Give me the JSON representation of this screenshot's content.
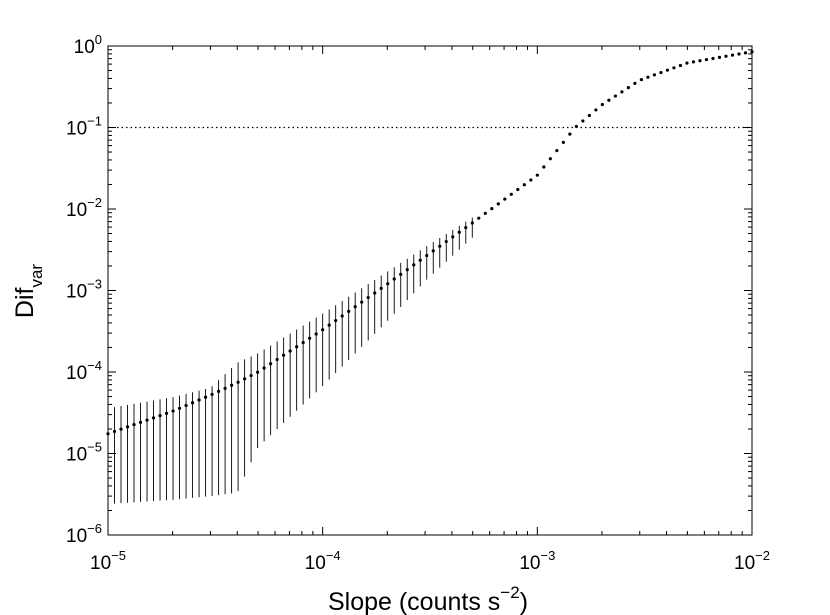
{
  "chart_data": {
    "type": "scatter",
    "x_scale": "log",
    "y_scale": "log",
    "xlim": [
      1e-05,
      0.01
    ],
    "ylim": [
      1e-06,
      1
    ],
    "grid": false,
    "xlabel": {
      "text": "Slope (counts s",
      "sup": "−2",
      "suffix": ")"
    },
    "ylabel": {
      "text": "Dif",
      "sub": "var"
    },
    "x_ticks": [
      {
        "value": 1e-05,
        "base": "10",
        "exp": "−5"
      },
      {
        "value": 0.0001,
        "base": "10",
        "exp": "−4"
      },
      {
        "value": 0.001,
        "base": "10",
        "exp": "−3"
      },
      {
        "value": 0.01,
        "base": "10",
        "exp": "−2"
      }
    ],
    "y_ticks": [
      {
        "value": 1e-06,
        "base": "10",
        "exp": "−6"
      },
      {
        "value": 1e-05,
        "base": "10",
        "exp": "−5"
      },
      {
        "value": 0.0001,
        "base": "10",
        "exp": "−4"
      },
      {
        "value": 0.001,
        "base": "10",
        "exp": "−3"
      },
      {
        "value": 0.01,
        "base": "10",
        "exp": "−2"
      },
      {
        "value": 0.1,
        "base": "10",
        "exp": "−1"
      },
      {
        "value": 1,
        "base": "10",
        "exp": "0"
      }
    ],
    "reference_lines": [
      {
        "axis": "y",
        "value": 0.1,
        "style": "dotted"
      }
    ],
    "series": [
      {
        "marker": "dot",
        "x_range": [
          1e-05,
          0.01
        ],
        "n_points": 100,
        "curve_knots_x": [
          1e-05,
          2e-05,
          3e-05,
          4e-05,
          5e-05,
          0.0001,
          0.0002,
          0.0003,
          0.0005,
          0.001,
          0.0015,
          0.002,
          0.003,
          0.005,
          0.01
        ],
        "curve_knots_y": [
          1.75e-05,
          3.3e-05,
          5.2e-05,
          7.4e-05,
          0.0001,
          0.00033,
          0.0012,
          0.0026,
          0.0068,
          0.026,
          0.1,
          0.19,
          0.38,
          0.62,
          0.85
        ],
        "error_low_knots_x": [
          1e-05,
          2e-05,
          3e-05,
          4e-05,
          5e-05,
          0.0001,
          0.0002,
          0.0003,
          0.0005
        ],
        "error_low_knots_y": [
          2.4e-06,
          2.7e-06,
          3e-06,
          3.3e-06,
          1.2e-05,
          6.7e-05,
          0.00042,
          0.0013,
          0.0045
        ],
        "error_high_knots_x": [
          1e-05,
          2e-05,
          3e-05,
          4e-05,
          5e-05,
          0.0001,
          0.0002,
          0.0003,
          0.0005
        ],
        "error_high_knots_y": [
          3.6e-05,
          4.9e-05,
          6.4e-05,
          0.00013,
          0.00017,
          0.00052,
          0.0017,
          0.0034,
          0.0079
        ]
      }
    ]
  }
}
